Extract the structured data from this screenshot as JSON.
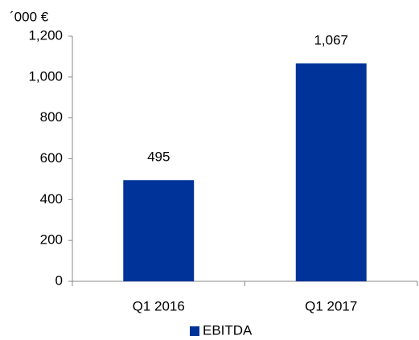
{
  "chart_data": {
    "type": "bar",
    "y_axis_label": "´000 €",
    "categories": [
      "Q1 2016",
      "Q1 2017"
    ],
    "series": [
      {
        "name": "EBITDA",
        "color": "#003399",
        "values": [
          495,
          1067
        ],
        "value_labels": [
          "495",
          "1,067"
        ]
      }
    ],
    "ylim": [
      0,
      1200
    ],
    "yticks": [
      0,
      200,
      400,
      600,
      800,
      {
        "value": 1000,
        "label": "1,000"
      },
      {
        "value": 1200,
        "label": "1,200"
      }
    ],
    "grid": false,
    "legend": "bottom"
  }
}
